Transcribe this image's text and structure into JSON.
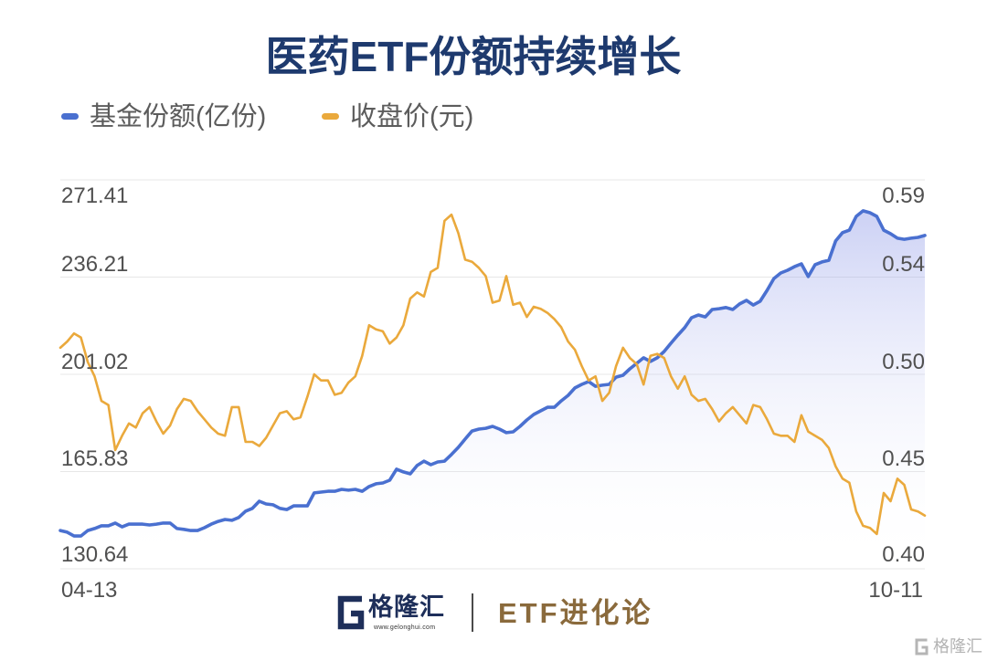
{
  "chart_data": {
    "type": "line",
    "title": "医药ETF份额持续增长",
    "x_ticks": [
      "04-13",
      "10-11"
    ],
    "y_left": {
      "ticks": [
        "271.41",
        "236.21",
        "201.02",
        "165.83",
        "130.64"
      ],
      "range": [
        130.64,
        271.41
      ]
    },
    "y_right": {
      "ticks": [
        "0.59",
        "0.54",
        "0.50",
        "0.45",
        "0.40"
      ],
      "range": [
        0.4,
        0.59
      ]
    },
    "grid": true,
    "legend_position": "top-left",
    "series": [
      {
        "name": "基金份额(亿份)",
        "axis": "left",
        "color": "#4a70d0",
        "area_fill": true,
        "values": [
          144.5,
          143.9,
          142.5,
          142.5,
          144.5,
          145.2,
          146.2,
          146.2,
          147.2,
          145.8,
          146.8,
          146.8,
          146.8,
          146.5,
          146.8,
          147.2,
          147.2,
          145.2,
          144.9,
          144.5,
          144.5,
          145.5,
          146.8,
          147.8,
          148.5,
          148.2,
          149.2,
          151.5,
          152.5,
          155.1,
          154.1,
          153.8,
          152.5,
          152.1,
          153.4,
          153.4,
          153.4,
          158.1,
          158.4,
          158.7,
          158.7,
          159.4,
          159.1,
          159.4,
          158.7,
          160.4,
          161.4,
          161.7,
          162.7,
          166.7,
          165.7,
          165.0,
          168.0,
          169.6,
          168.3,
          169.3,
          169.6,
          172.0,
          174.6,
          177.6,
          180.5,
          181.2,
          181.5,
          182.2,
          181.2,
          179.9,
          180.2,
          182.2,
          184.5,
          186.5,
          187.8,
          189.1,
          189.1,
          191.4,
          193.4,
          196.1,
          197.4,
          198.4,
          196.7,
          197.1,
          197.4,
          200.0,
          200.7,
          203.0,
          205.0,
          207.0,
          205.7,
          207.0,
          209.3,
          212.3,
          215.2,
          217.9,
          221.5,
          222.5,
          221.8,
          224.5,
          224.8,
          225.2,
          224.5,
          226.5,
          227.8,
          226.1,
          227.5,
          231.4,
          235.7,
          237.7,
          238.7,
          240.0,
          241.0,
          236.4,
          240.7,
          241.7,
          242.3,
          249.3,
          252.3,
          253.2,
          258.2,
          260.2,
          259.5,
          258.2,
          253.2,
          251.9,
          250.3,
          249.9,
          250.3,
          250.6,
          251.3
        ]
      },
      {
        "name": "收盘价(元)",
        "axis": "right",
        "color": "#eaa93c",
        "values": [
          0.508,
          0.511,
          0.515,
          0.513,
          0.501,
          0.494,
          0.482,
          0.48,
          0.458,
          0.465,
          0.471,
          0.469,
          0.476,
          0.479,
          0.472,
          0.466,
          0.47,
          0.478,
          0.483,
          0.482,
          0.477,
          0.473,
          0.469,
          0.466,
          0.465,
          0.479,
          0.479,
          0.462,
          0.462,
          0.46,
          0.464,
          0.47,
          0.476,
          0.477,
          0.473,
          0.474,
          0.484,
          0.495,
          0.492,
          0.492,
          0.485,
          0.486,
          0.491,
          0.494,
          0.504,
          0.519,
          0.517,
          0.516,
          0.51,
          0.513,
          0.519,
          0.532,
          0.535,
          0.533,
          0.545,
          0.547,
          0.57,
          0.573,
          0.564,
          0.551,
          0.55,
          0.547,
          0.543,
          0.53,
          0.531,
          0.543,
          0.529,
          0.53,
          0.523,
          0.528,
          0.527,
          0.525,
          0.522,
          0.518,
          0.511,
          0.507,
          0.499,
          0.492,
          0.494,
          0.482,
          0.486,
          0.499,
          0.508,
          0.503,
          0.5,
          0.49,
          0.504,
          0.505,
          0.503,
          0.494,
          0.488,
          0.494,
          0.485,
          0.482,
          0.483,
          0.478,
          0.472,
          0.476,
          0.479,
          0.475,
          0.471,
          0.48,
          0.479,
          0.473,
          0.466,
          0.465,
          0.465,
          0.462,
          0.475,
          0.467,
          0.465,
          0.463,
          0.459,
          0.45,
          0.444,
          0.442,
          0.428,
          0.421,
          0.42,
          0.417,
          0.437,
          0.433,
          0.444,
          0.441,
          0.429,
          0.428,
          0.426
        ]
      }
    ]
  },
  "footer": {
    "logo_icon": "gelonghui-logo-icon",
    "logo_text": "格隆汇",
    "logo_subtext": "www.gelonghui.com",
    "column_name": "ETF进化论",
    "column_color": "#8a6a3c"
  },
  "watermark": {
    "icon": "gelonghui-g-icon",
    "text": "格隆汇"
  }
}
